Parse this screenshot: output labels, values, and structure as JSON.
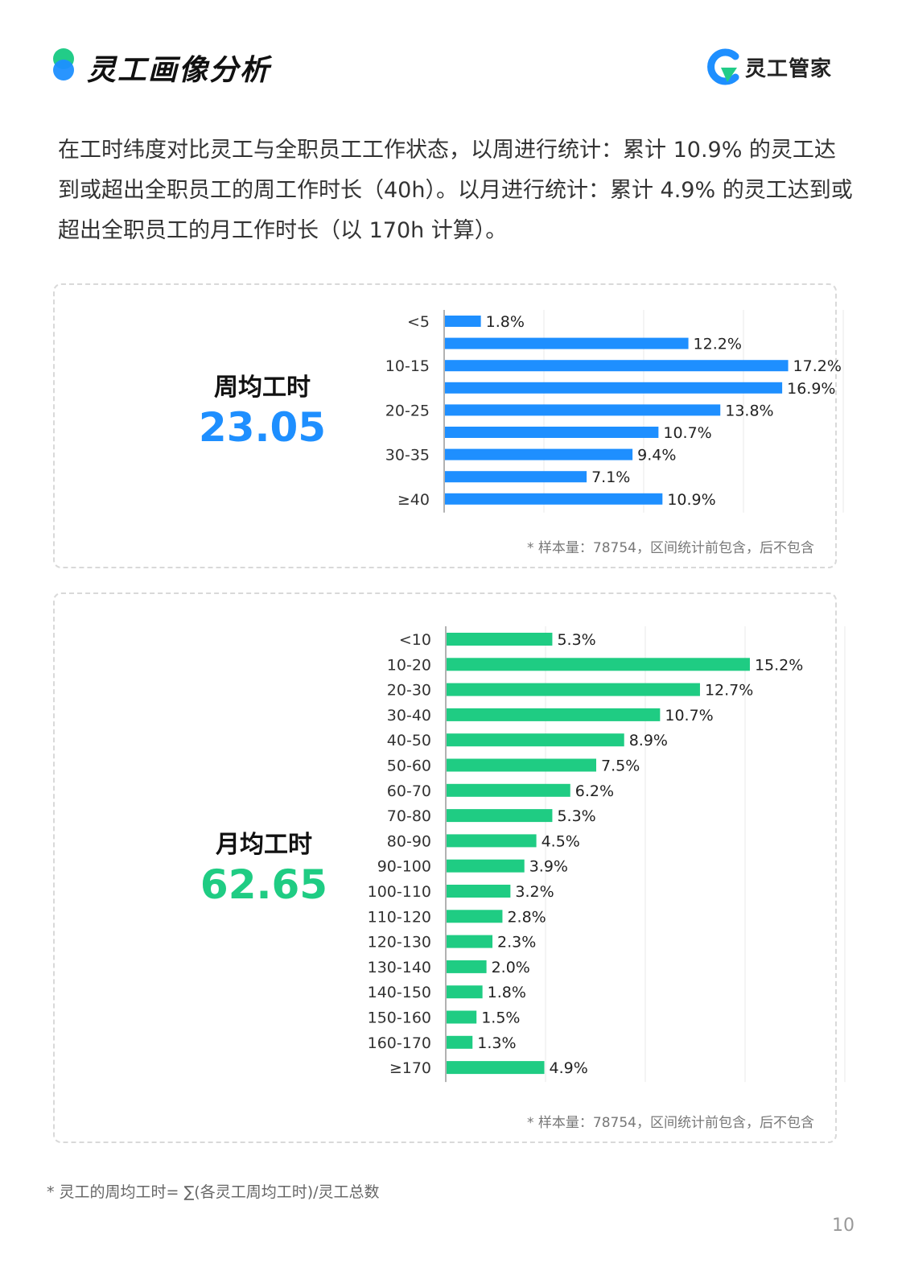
{
  "header": {
    "title": "灵工画像分析",
    "brand_name": "灵工管家",
    "brand_logo_icon": "brand-logo-icon"
  },
  "intro_text": "在工时纬度对比灵工与全职员工工作状态，以周进行统计：累计 10.9% 的灵工达到或超出全职员工的周工作时长（40h）。以月进行统计：累计 4.9% 的灵工达到或超出全职员工的月工作时长（以 170h 计算）。",
  "weekly": {
    "stat_label": "周均工时",
    "stat_value": "23.05",
    "note": "* 样本量：78754，区间统计前包含，后不包含"
  },
  "monthly": {
    "stat_label": "月均工时",
    "stat_value": "62.65",
    "note": "* 样本量：78754，区间统计前包含，后不包含"
  },
  "footnote": "* 灵工的周均工时= ∑(各灵工周均工时)/灵工总数",
  "page_number": "10",
  "colors": {
    "weekly_bar": "#1e8fff",
    "monthly_bar": "#1fcc83",
    "accent_green": "#22cc88",
    "accent_blue": "#1e8fff"
  },
  "chart_data": [
    {
      "type": "bar",
      "orientation": "horizontal",
      "categories": [
        "<5",
        "",
        "10-15",
        "",
        "20-25",
        "",
        "30-35",
        "",
        "≥40"
      ],
      "values": [
        1.8,
        12.2,
        17.2,
        16.9,
        13.8,
        10.7,
        9.4,
        7.1,
        10.9
      ],
      "value_labels": [
        "1.8%",
        "12.2%",
        "17.2%",
        "16.9%",
        "13.8%",
        "10.7%",
        "9.4%",
        "7.1%",
        "10.9%"
      ],
      "xlim": [
        0,
        20
      ],
      "grid": true
    },
    {
      "type": "bar",
      "orientation": "horizontal",
      "categories": [
        "<10",
        "10-20",
        "20-30",
        "30-40",
        "40-50",
        "50-60",
        "60-70",
        "70-80",
        "80-90",
        "90-100",
        "100-110",
        "110-120",
        "120-130",
        "130-140",
        "140-150",
        "150-160",
        "160-170",
        "≥170"
      ],
      "values": [
        5.3,
        15.2,
        12.7,
        10.7,
        8.9,
        7.5,
        6.2,
        5.3,
        4.5,
        3.9,
        3.2,
        2.8,
        2.3,
        2.0,
        1.8,
        1.5,
        1.3,
        4.9
      ],
      "value_labels": [
        "5.3%",
        "15.2%",
        "12.7%",
        "10.7%",
        "8.9%",
        "7.5%",
        "6.2%",
        "5.3%",
        "4.5%",
        "3.9%",
        "3.2%",
        "2.8%",
        "2.3%",
        "2.0%",
        "1.8%",
        "1.5%",
        "1.3%",
        "4.9%"
      ],
      "xlim": [
        0,
        20
      ],
      "grid": true
    }
  ]
}
